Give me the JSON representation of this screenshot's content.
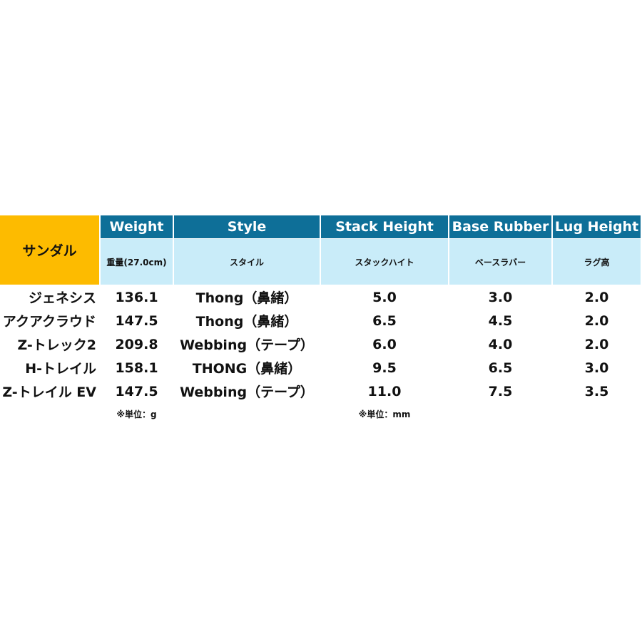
{
  "table": {
    "corner_label": "サンダル",
    "columns": [
      {
        "en": "Weight",
        "ja": "重量(27.0cm)"
      },
      {
        "en": "Style",
        "ja": "スタイル"
      },
      {
        "en": "Stack Height",
        "ja": "スタックハイト"
      },
      {
        "en": "Base Rubber",
        "ja": "ベースラバー"
      },
      {
        "en": "Lug Height",
        "ja": "ラグ高"
      }
    ],
    "rows": [
      [
        "ジェネシス",
        "136.1",
        "Thong（鼻緒）",
        "5.0",
        "3.0",
        "2.0"
      ],
      [
        "アクアクラウド",
        "147.5",
        "Thong（鼻緒）",
        "6.5",
        "4.5",
        "2.0"
      ],
      [
        "Z-トレック2",
        "209.8",
        "Webbing（テープ）",
        "6.0",
        "4.0",
        "2.0"
      ],
      [
        "H-トレイル",
        "158.1",
        "THONG（鼻緒）",
        "9.5",
        "6.5",
        "3.0"
      ],
      [
        "Z-トレイル EV",
        "147.5",
        "Webbing（テープ）",
        "11.0",
        "7.5",
        "3.5"
      ]
    ],
    "notes": {
      "weight": "※単位：g",
      "height": "※単位：mm"
    }
  },
  "colors": {
    "corner": "#fdbb00",
    "header": "#0e6f98",
    "subheader": "#c9ecf9"
  }
}
